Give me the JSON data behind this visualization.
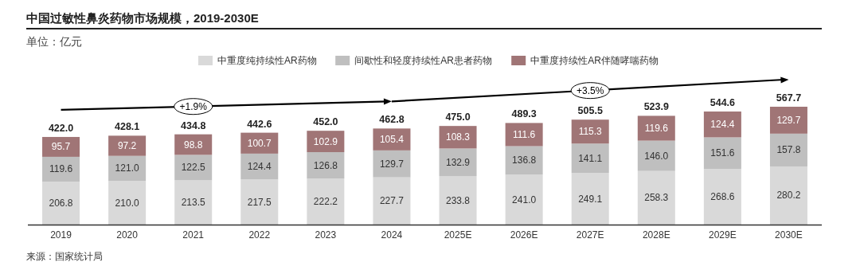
{
  "chart_data": {
    "type": "bar",
    "title": "中国过敏性鼻炎药物市场规模，2019-2030E",
    "subtitle": "单位：亿元",
    "categories": [
      "2019",
      "2020",
      "2021",
      "2022",
      "2023",
      "2024",
      "2025E",
      "2026E",
      "2027E",
      "2028E",
      "2029E",
      "2030E"
    ],
    "stacked": true,
    "legend": "top",
    "series": [
      {
        "name": "中重度纯持续性AR药物",
        "color": "#d9d9d9",
        "values": [
          206.8,
          210.0,
          213.5,
          217.5,
          222.2,
          227.7,
          233.8,
          241.0,
          249.1,
          258.3,
          268.6,
          280.2
        ],
        "value_labels": [
          "206.8",
          "210.0",
          "213.5",
          "217.5",
          "222.2",
          "227.7",
          "233.8",
          "241.0",
          "249.1",
          "258.3",
          "268.6",
          "280.2"
        ]
      },
      {
        "name": "间歇性和轻度持续性AR患者药物",
        "color": "#bfbfbf",
        "values": [
          119.6,
          121.0,
          122.5,
          124.4,
          126.8,
          129.7,
          132.9,
          136.8,
          141.1,
          146.0,
          151.6,
          157.8
        ],
        "value_labels": [
          "119.6",
          "121.0",
          "122.5",
          "124.4",
          "126.8",
          "129.7",
          "132.9",
          "136.8",
          "141.1",
          "146.0",
          "151.6",
          "157.8"
        ]
      },
      {
        "name": "中重度持续性AR伴随哮喘药物",
        "color": "#a07576",
        "values": [
          95.7,
          97.2,
          98.8,
          100.7,
          102.9,
          105.4,
          108.3,
          111.6,
          115.3,
          119.6,
          124.4,
          129.7
        ],
        "value_labels": [
          "95.7",
          "97.2",
          "98.8",
          "100.7",
          "102.9",
          "105.4",
          "108.3",
          "111.6",
          "115.3",
          "119.6",
          "124.4",
          "129.7"
        ]
      }
    ],
    "totals": [
      "422.0",
      "428.1",
      "434.8",
      "442.6",
      "452.0",
      "462.8",
      "475.0",
      "489.3",
      "505.5",
      "523.9",
      "544.6",
      "567.7"
    ],
    "annotations": [
      "+1.9%",
      "+3.5%",
      "来源：国家统计局"
    ]
  }
}
